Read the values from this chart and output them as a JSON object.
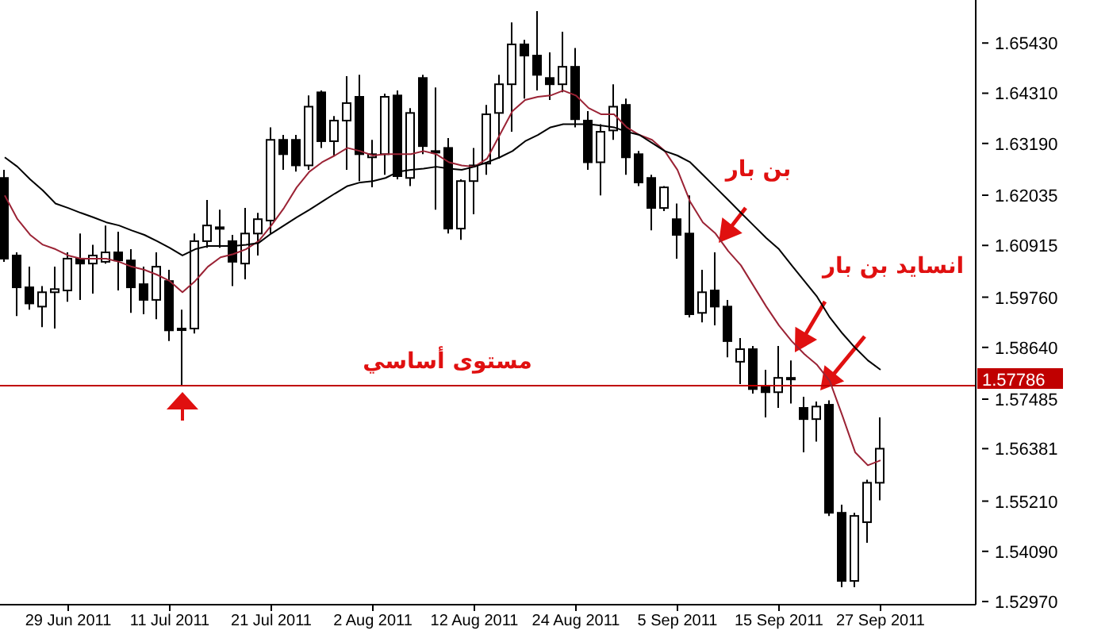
{
  "chart_data": {
    "type": "candlestick",
    "categories": [
      null,
      null,
      null,
      null,
      null,
      "29 Jun 2011",
      null,
      null,
      null,
      null,
      null,
      null,
      null,
      "11 Jul 2011",
      null,
      null,
      null,
      null,
      null,
      null,
      null,
      "21 Jul 2011",
      null,
      null,
      null,
      null,
      null,
      null,
      null,
      "2 Aug 2011",
      null,
      null,
      null,
      null,
      null,
      null,
      null,
      "12 Aug 2011",
      null,
      null,
      null,
      null,
      null,
      null,
      null,
      "24 Aug 2011",
      null,
      null,
      null,
      null,
      null,
      null,
      null,
      "5 Sep 2011",
      null,
      null,
      null,
      null,
      null,
      null,
      null,
      "15 Sep 2011",
      null,
      null,
      null,
      null,
      null,
      null,
      null,
      "27 Sep 2011"
    ],
    "ohlc": [
      [
        1.6242,
        1.626,
        1.6055,
        1.6062
      ],
      [
        1.6069,
        1.6076,
        1.5934,
        1.5998
      ],
      [
        1.5998,
        1.6044,
        1.5948,
        1.5962
      ],
      [
        1.5955,
        1.6001,
        1.5909,
        1.5987
      ],
      [
        1.5987,
        1.6044,
        1.5906,
        1.5994
      ],
      [
        1.5991,
        1.6076,
        1.5966,
        1.6062
      ],
      [
        1.6062,
        1.6118,
        1.597,
        1.6051
      ],
      [
        1.6051,
        1.6093,
        1.5984,
        1.6069
      ],
      [
        1.6055,
        1.6136,
        1.6051,
        1.6076
      ],
      [
        1.6076,
        1.6122,
        1.5991,
        1.6058
      ],
      [
        1.6058,
        1.6083,
        1.5941,
        1.5998
      ],
      [
        1.6005,
        1.6044,
        1.5938,
        1.597
      ],
      [
        1.597,
        1.6076,
        1.5927,
        1.6044
      ],
      [
        1.6012,
        1.6037,
        1.5878,
        1.5902
      ],
      [
        1.5906,
        1.5948,
        1.5778,
        1.5906
      ],
      [
        1.5906,
        1.6118,
        1.5895,
        1.6101
      ],
      [
        1.6101,
        1.6193,
        1.6086,
        1.6136
      ],
      [
        1.6132,
        1.6171,
        1.6086,
        1.6132
      ],
      [
        1.6101,
        1.6115,
        1.6001,
        1.6055
      ],
      [
        1.6051,
        1.6175,
        1.6016,
        1.6118
      ],
      [
        1.6118,
        1.6164,
        1.6069,
        1.615
      ],
      [
        1.6147,
        1.6355,
        1.6118,
        1.6327
      ],
      [
        1.6327,
        1.6338,
        1.626,
        1.6295
      ],
      [
        1.6327,
        1.6338,
        1.6256,
        1.627
      ],
      [
        1.627,
        1.6426,
        1.626,
        1.6401
      ],
      [
        1.6433,
        1.6437,
        1.6309,
        1.6324
      ],
      [
        1.6324,
        1.638,
        1.6292,
        1.637
      ],
      [
        1.637,
        1.6469,
        1.626,
        1.6409
      ],
      [
        1.6423,
        1.6472,
        1.6235,
        1.6295
      ],
      [
        1.6288,
        1.6327,
        1.6221,
        1.6295
      ],
      [
        1.6295,
        1.643,
        1.6249,
        1.6423
      ],
      [
        1.6426,
        1.6437,
        1.6239,
        1.6246
      ],
      [
        1.6242,
        1.6398,
        1.6224,
        1.6387
      ],
      [
        1.6465,
        1.6472,
        1.6295,
        1.6313
      ],
      [
        1.6302,
        1.6444,
        1.6171,
        1.6302
      ],
      [
        1.6309,
        1.6331,
        1.6118,
        1.6129
      ],
      [
        1.6129,
        1.6239,
        1.6104,
        1.6235
      ],
      [
        1.6235,
        1.6309,
        1.6161,
        1.627
      ],
      [
        1.6274,
        1.6405,
        1.6249,
        1.6384
      ],
      [
        1.6387,
        1.6472,
        1.6285,
        1.6451
      ],
      [
        1.6451,
        1.6589,
        1.6345,
        1.654
      ],
      [
        1.654,
        1.655,
        1.6419,
        1.6515
      ],
      [
        1.6515,
        1.6614,
        1.6437,
        1.6472
      ],
      [
        1.6465,
        1.6522,
        1.6416,
        1.6451
      ],
      [
        1.6451,
        1.6568,
        1.6433,
        1.649
      ],
      [
        1.649,
        1.6532,
        1.6355,
        1.6373
      ],
      [
        1.637,
        1.6391,
        1.626,
        1.6277
      ],
      [
        1.6277,
        1.6362,
        1.6203,
        1.6345
      ],
      [
        1.6348,
        1.6451,
        1.6327,
        1.6401
      ],
      [
        1.6405,
        1.6419,
        1.6249,
        1.6288
      ],
      [
        1.6295,
        1.6302,
        1.6224,
        1.6232
      ],
      [
        1.6242,
        1.6249,
        1.6125,
        1.6175
      ],
      [
        1.6175,
        1.6224,
        1.6168,
        1.6221
      ],
      [
        1.615,
        1.6185,
        1.6062,
        1.6115
      ],
      [
        1.6118,
        1.6203,
        1.5931,
        1.5938
      ],
      [
        1.5941,
        1.6037,
        1.592,
        1.5987
      ],
      [
        1.5991,
        1.6076,
        1.5913,
        1.5955
      ],
      [
        1.5955,
        1.597,
        1.5842,
        1.5878
      ],
      [
        1.5832,
        1.5885,
        1.5782,
        1.586
      ],
      [
        1.586,
        1.5867,
        1.5761,
        1.5771
      ],
      [
        1.5778,
        1.5814,
        1.5708,
        1.5764
      ],
      [
        1.5764,
        1.5867,
        1.5729,
        1.5796
      ],
      [
        1.5796,
        1.5835,
        1.5739,
        1.5796
      ],
      [
        1.5729,
        1.5754,
        1.563,
        1.5704
      ],
      [
        1.5704,
        1.5743,
        1.5654,
        1.5732
      ],
      [
        1.5736,
        1.5746,
        1.5488,
        1.5495
      ],
      [
        1.5495,
        1.5513,
        1.5329,
        1.5343
      ],
      [
        1.5343,
        1.5495,
        1.5329,
        1.5488
      ],
      [
        1.5474,
        1.5569,
        1.5428,
        1.5562
      ],
      [
        1.5562,
        1.5708,
        1.5523,
        1.5638
      ]
    ],
    "series": [
      {
        "type": "line",
        "color": "#9b2335",
        "values": [
          1.6203,
          1.615,
          1.6115,
          1.6093,
          1.6083,
          1.6069,
          1.6062,
          1.6062,
          1.6062,
          1.6055,
          1.6044,
          1.6037,
          1.6026,
          1.6012,
          1.5987,
          1.6012,
          1.6044,
          1.6065,
          1.6072,
          1.6083,
          1.6101,
          1.6136,
          1.6175,
          1.6221,
          1.6256,
          1.6277,
          1.6292,
          1.6309,
          1.6302,
          1.6292,
          1.6295,
          1.6295,
          1.6295,
          1.6302,
          1.6295,
          1.6277,
          1.627,
          1.6267,
          1.6285,
          1.6338,
          1.6391,
          1.6416,
          1.6423,
          1.6426,
          1.6437,
          1.6426,
          1.6398,
          1.6384,
          1.6384,
          1.6355,
          1.6338,
          1.6327,
          1.6302,
          1.626,
          1.6189,
          1.6143,
          1.6118,
          1.6079,
          1.6047,
          1.6001,
          1.5955,
          1.5913,
          1.5878,
          1.5849,
          1.5825,
          1.5789,
          1.5711,
          1.563,
          1.5601,
          1.5612
        ]
      },
      {
        "type": "line",
        "color": "#000000",
        "values": [
          1.6288,
          1.6267,
          1.6239,
          1.6214,
          1.6185,
          1.6175,
          1.6164,
          1.6154,
          1.6143,
          1.6136,
          1.6125,
          1.6115,
          1.6101,
          1.6086,
          1.6069,
          1.6083,
          1.609,
          1.609,
          1.609,
          1.6093,
          1.6097,
          1.6118,
          1.6136,
          1.6154,
          1.6171,
          1.6189,
          1.6207,
          1.6224,
          1.6232,
          1.6235,
          1.6242,
          1.6256,
          1.626,
          1.6263,
          1.6267,
          1.6263,
          1.626,
          1.6267,
          1.6277,
          1.6288,
          1.6302,
          1.6324,
          1.6338,
          1.6355,
          1.6362,
          1.6362,
          1.6362,
          1.6359,
          1.6355,
          1.6345,
          1.6338,
          1.632,
          1.6302,
          1.6292,
          1.6277,
          1.6249,
          1.6221,
          1.6193,
          1.6164,
          1.6136,
          1.6108,
          1.6083,
          1.6047,
          1.6012,
          1.5977,
          1.5931,
          1.5895,
          1.5863,
          1.5835,
          1.5814
        ]
      }
    ],
    "ylim": [
      1.529,
      1.6639
    ],
    "yticks": [
      {
        "value": 1.6543,
        "label": "1.65430"
      },
      {
        "value": 1.6431,
        "label": "1.64310"
      },
      {
        "value": 1.6319,
        "label": "1.63190"
      },
      {
        "value": 1.62035,
        "label": "1.62035"
      },
      {
        "value": 1.60915,
        "label": "1.60915"
      },
      {
        "value": 1.5976,
        "label": "1.59760"
      },
      {
        "value": 1.5864,
        "label": "1.58640"
      },
      {
        "value": 1.57485,
        "label": "1.57485"
      },
      {
        "value": 1.56381,
        "label": "1.56381"
      },
      {
        "value": 1.5521,
        "label": "1.55210"
      },
      {
        "value": 1.5409,
        "label": "1.54090"
      },
      {
        "value": 1.5297,
        "label": "1.52970"
      }
    ],
    "ref_lines": [
      {
        "axis": "y",
        "value": 1.57786,
        "label": "1.57786",
        "color": "#c00000"
      }
    ],
    "annotations": [
      "بن بار",
      "انسايد بن بار",
      {
        "text": "مستوى أساسي",
        "y": 1.57786
      }
    ]
  }
}
